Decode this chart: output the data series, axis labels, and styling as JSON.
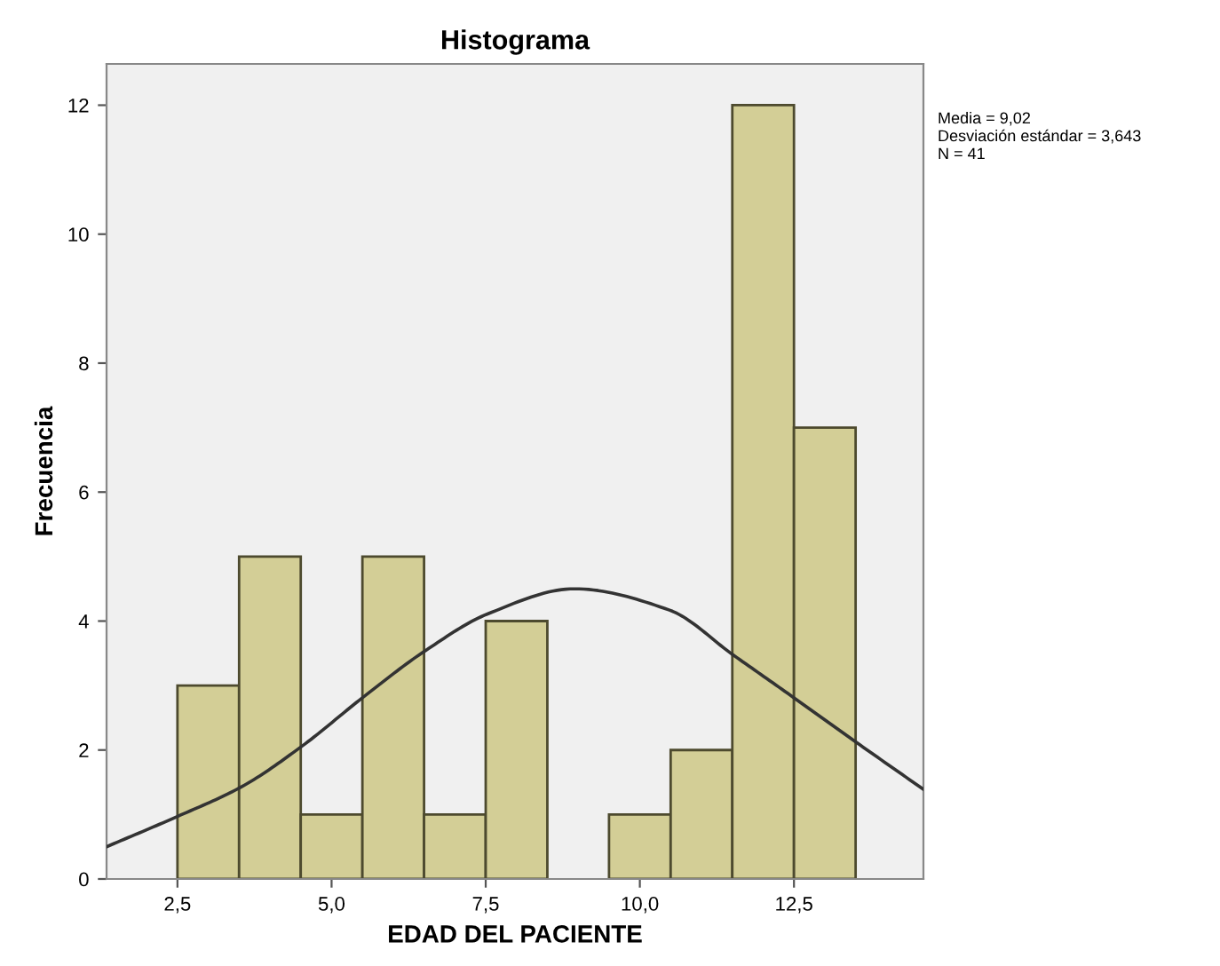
{
  "chart_data": {
    "type": "histogram",
    "title": "Histograma",
    "xlabel": "EDAD DEL PACIENTE",
    "ylabel": "Frecuencia",
    "bins": [
      2.5,
      3.5,
      4.5,
      5.5,
      6.5,
      7.5,
      8.5,
      9.5,
      10.5,
      11.5,
      12.5,
      13.5
    ],
    "values": [
      3,
      5,
      1,
      5,
      1,
      4,
      0,
      1,
      2,
      12,
      7
    ],
    "color": "#d3ce96",
    "series": [
      {
        "type": "line",
        "color": "#333333",
        "x": [
          1.35,
          2.5,
          3.54,
          4.52,
          5.5,
          6.52,
          7.53,
          8.94,
          10.48,
          11.52,
          12.5,
          13.51,
          14.6
        ],
        "values": [
          0.5,
          0.97,
          1.43,
          2.06,
          2.81,
          3.54,
          4.11,
          4.5,
          4.17,
          3.47,
          2.81,
          2.12,
          1.39
        ]
      }
    ],
    "xlim": [
      1.35,
      14.6
    ],
    "ylim": [
      0,
      12.64
    ],
    "xticks": [
      {
        "value": 2.5,
        "label": "2,5"
      },
      {
        "value": 5.0,
        "label": "5,0"
      },
      {
        "value": 7.5,
        "label": "7,5"
      },
      {
        "value": 10.0,
        "label": "10,0"
      },
      {
        "value": 12.5,
        "label": "12,5"
      }
    ],
    "yticks": [
      0,
      2,
      4,
      6,
      8,
      10,
      12
    ],
    "annotations": [
      "Media = 9,02",
      "Desviación estándar = 3,643",
      "N = 41"
    ],
    "grid": false,
    "legend": false
  }
}
